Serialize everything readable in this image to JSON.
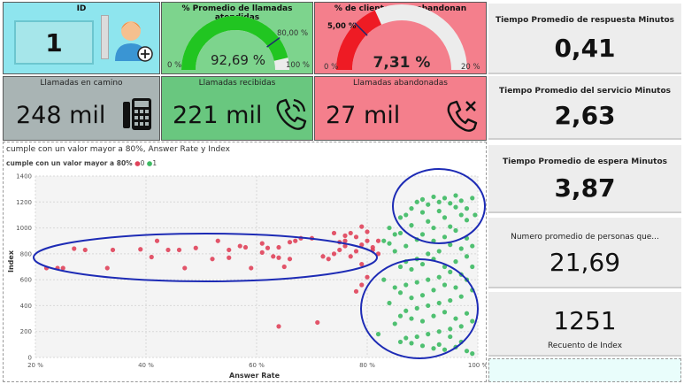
{
  "id_card": {
    "title": "ID",
    "value": "1"
  },
  "gauge_attended": {
    "title": "% Promedio de llamadas atendidas",
    "value": "92,69 %",
    "min": "0 %",
    "max": "100 %",
    "target": "80,00 %",
    "fraction": 0.9269,
    "target_fraction": 0.8,
    "color": "#21c521"
  },
  "gauge_abandon": {
    "title": "% de clientes que abandonan",
    "value": "7,31 %",
    "min": "0 %",
    "max": "20 %",
    "target": "5,00 %",
    "fraction": 0.3655,
    "target_fraction": 0.25,
    "color": "#ee1b24"
  },
  "kpis": [
    {
      "title": "Llamadas en camino",
      "value": "248 mil",
      "icon": "calculator-icon",
      "color": "#a9b4b4"
    },
    {
      "title": "Llamadas recibidas",
      "value": "221 mil",
      "icon": "phone-ringing-icon",
      "color": "#69c77f"
    },
    {
      "title": "Llamadas abandonadas",
      "value": "27 mil",
      "icon": "phone-missed-icon",
      "color": "#f47f8c"
    }
  ],
  "right_cards": [
    {
      "title": "Tiempo Promedio de respuesta Minutos",
      "value": "0,41"
    },
    {
      "title": "Tiempo Promedio del servicio Minutos",
      "value": "2,63"
    },
    {
      "title": "Tiempo Promedio de espera Minutos",
      "value": "3,87"
    },
    {
      "title": "Numero promedio de personas que...",
      "value": "21,69"
    },
    {
      "title": "Recuento de Index",
      "value": "1251"
    }
  ],
  "chart_data": {
    "type": "scatter",
    "title": "cumple con un valor mayor a 80%, Answer Rate y Index",
    "legend_title": "cumple con un valor mayor a 80%",
    "xlabel": "Answer Rate",
    "ylabel": "Index",
    "x_ticks": [
      "20 %",
      "40 %",
      "60 %",
      "80 %",
      "100 %"
    ],
    "y_ticks": [
      "0",
      "200",
      "400",
      "600",
      "800",
      "1000",
      "1200",
      "1400"
    ],
    "xlim": [
      0.2,
      1.0
    ],
    "ylim": [
      0,
      1400
    ],
    "grid": true,
    "legend_position": "top-left",
    "series": [
      {
        "name": "0",
        "color": "#e0435a",
        "points": [
          [
            0.22,
            690
          ],
          [
            0.24,
            690
          ],
          [
            0.25,
            690
          ],
          [
            0.33,
            690
          ],
          [
            0.27,
            840
          ],
          [
            0.29,
            830
          ],
          [
            0.34,
            830
          ],
          [
            0.39,
            835
          ],
          [
            0.41,
            775
          ],
          [
            0.42,
            900
          ],
          [
            0.44,
            830
          ],
          [
            0.46,
            830
          ],
          [
            0.47,
            690
          ],
          [
            0.49,
            845
          ],
          [
            0.52,
            760
          ],
          [
            0.55,
            830
          ],
          [
            0.55,
            770
          ],
          [
            0.57,
            860
          ],
          [
            0.58,
            850
          ],
          [
            0.59,
            690
          ],
          [
            0.61,
            880
          ],
          [
            0.62,
            845
          ],
          [
            0.63,
            780
          ],
          [
            0.64,
            770
          ],
          [
            0.65,
            700
          ],
          [
            0.66,
            890
          ],
          [
            0.67,
            900
          ],
          [
            0.68,
            920
          ],
          [
            0.7,
            920
          ],
          [
            0.53,
            900
          ],
          [
            0.61,
            810
          ],
          [
            0.64,
            850
          ],
          [
            0.66,
            760
          ],
          [
            0.72,
            780
          ],
          [
            0.73,
            760
          ],
          [
            0.74,
            800
          ],
          [
            0.76,
            860
          ],
          [
            0.76,
            940
          ],
          [
            0.77,
            960
          ],
          [
            0.78,
            820
          ],
          [
            0.79,
            870
          ],
          [
            0.8,
            900
          ],
          [
            0.81,
            830
          ],
          [
            0.82,
            900
          ],
          [
            0.79,
            720
          ],
          [
            0.8,
            620
          ],
          [
            0.79,
            560
          ],
          [
            0.78,
            510
          ],
          [
            0.75,
            830
          ],
          [
            0.75,
            890
          ],
          [
            0.77,
            780
          ],
          [
            0.78,
            930
          ],
          [
            0.79,
            1010
          ],
          [
            0.8,
            970
          ],
          [
            0.64,
            240
          ],
          [
            0.71,
            270
          ],
          [
            0.81,
            850
          ],
          [
            0.82,
            800
          ],
          [
            0.76,
            900
          ],
          [
            0.74,
            960
          ]
        ]
      },
      {
        "name": "1",
        "color": "#3dba63",
        "points": [
          [
            0.83,
            900
          ],
          [
            0.84,
            1000
          ],
          [
            0.85,
            950
          ],
          [
            0.86,
            1080
          ],
          [
            0.87,
            1100
          ],
          [
            0.88,
            1150
          ],
          [
            0.89,
            1200
          ],
          [
            0.9,
            1220
          ],
          [
            0.91,
            1180
          ],
          [
            0.92,
            1240
          ],
          [
            0.93,
            1200
          ],
          [
            0.94,
            1230
          ],
          [
            0.95,
            1190
          ],
          [
            0.96,
            1250
          ],
          [
            0.97,
            1210
          ],
          [
            0.98,
            1150
          ],
          [
            0.99,
            1230
          ],
          [
            0.995,
            1100
          ],
          [
            0.9,
            1120
          ],
          [
            0.93,
            1130
          ],
          [
            0.96,
            1160
          ],
          [
            0.98,
            1060
          ],
          [
            0.95,
            1010
          ],
          [
            0.91,
            1050
          ],
          [
            0.94,
            1080
          ],
          [
            0.97,
            1100
          ],
          [
            0.92,
            1000
          ],
          [
            0.88,
            1020
          ],
          [
            0.86,
            960
          ],
          [
            0.84,
            880
          ],
          [
            0.85,
            820
          ],
          [
            0.87,
            860
          ],
          [
            0.89,
            910
          ],
          [
            0.9,
            950
          ],
          [
            0.92,
            900
          ],
          [
            0.94,
            930
          ],
          [
            0.96,
            980
          ],
          [
            0.98,
            920
          ],
          [
            0.99,
            860
          ],
          [
            0.97,
            840
          ],
          [
            0.95,
            870
          ],
          [
            0.93,
            820
          ],
          [
            0.91,
            800
          ],
          [
            0.89,
            760
          ],
          [
            0.87,
            740
          ],
          [
            0.86,
            700
          ],
          [
            0.88,
            680
          ],
          [
            0.9,
            720
          ],
          [
            0.92,
            760
          ],
          [
            0.94,
            700
          ],
          [
            0.96,
            740
          ],
          [
            0.98,
            780
          ],
          [
            0.99,
            700
          ],
          [
            0.97,
            640
          ],
          [
            0.95,
            660
          ],
          [
            0.93,
            620
          ],
          [
            0.91,
            600
          ],
          [
            0.89,
            580
          ],
          [
            0.87,
            560
          ],
          [
            0.85,
            540
          ],
          [
            0.86,
            500
          ],
          [
            0.88,
            460
          ],
          [
            0.9,
            480
          ],
          [
            0.92,
            520
          ],
          [
            0.94,
            560
          ],
          [
            0.96,
            540
          ],
          [
            0.98,
            600
          ],
          [
            0.99,
            520
          ],
          [
            0.97,
            470
          ],
          [
            0.95,
            440
          ],
          [
            0.93,
            420
          ],
          [
            0.91,
            400
          ],
          [
            0.89,
            380
          ],
          [
            0.87,
            360
          ],
          [
            0.86,
            320
          ],
          [
            0.88,
            300
          ],
          [
            0.9,
            280
          ],
          [
            0.92,
            320
          ],
          [
            0.94,
            350
          ],
          [
            0.96,
            300
          ],
          [
            0.98,
            340
          ],
          [
            0.99,
            280
          ],
          [
            0.97,
            240
          ],
          [
            0.95,
            220
          ],
          [
            0.93,
            200
          ],
          [
            0.91,
            180
          ],
          [
            0.89,
            160
          ],
          [
            0.87,
            150
          ],
          [
            0.86,
            120
          ],
          [
            0.88,
            110
          ],
          [
            0.9,
            90
          ],
          [
            0.92,
            70
          ],
          [
            0.94,
            60
          ],
          [
            0.96,
            80
          ],
          [
            0.98,
            50
          ],
          [
            0.99,
            30
          ],
          [
            0.97,
            120
          ],
          [
            0.95,
            160
          ],
          [
            0.93,
            100
          ],
          [
            0.84,
            420
          ],
          [
            0.83,
            600
          ],
          [
            0.82,
            180
          ],
          [
            0.85,
            260
          ]
        ]
      }
    ]
  }
}
